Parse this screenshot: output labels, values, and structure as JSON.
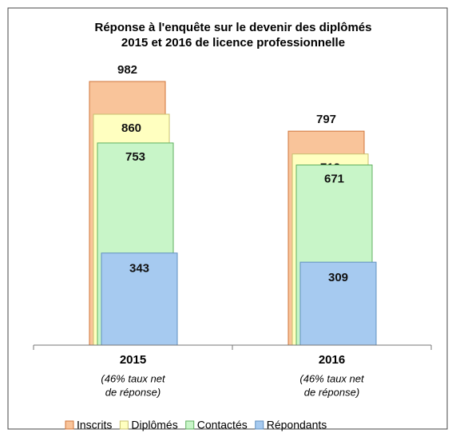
{
  "chart_data": {
    "type": "overlapping_bar",
    "title": [
      "Réponse à l'enquête sur le devenir des diplômés",
      "2015 et 2016 de licence professionnelle"
    ],
    "categories": [
      "2015",
      "2016"
    ],
    "category_notes": [
      [
        "(46% taux net",
        "de réponse)"
      ],
      [
        "(46% taux net",
        "de réponse)"
      ]
    ],
    "series": [
      {
        "name": "Inscrits",
        "color": "#f9c49a",
        "values": [
          982,
          797
        ]
      },
      {
        "name": "Diplômés",
        "color": "#ffffc0",
        "values": [
          860,
          712
        ]
      },
      {
        "name": "Contactés",
        "color": "#c8f5c8",
        "values": [
          753,
          671
        ]
      },
      {
        "name": "Répondants",
        "color": "#a6caf0",
        "values": [
          343,
          309
        ]
      }
    ],
    "legend": "bottom"
  }
}
